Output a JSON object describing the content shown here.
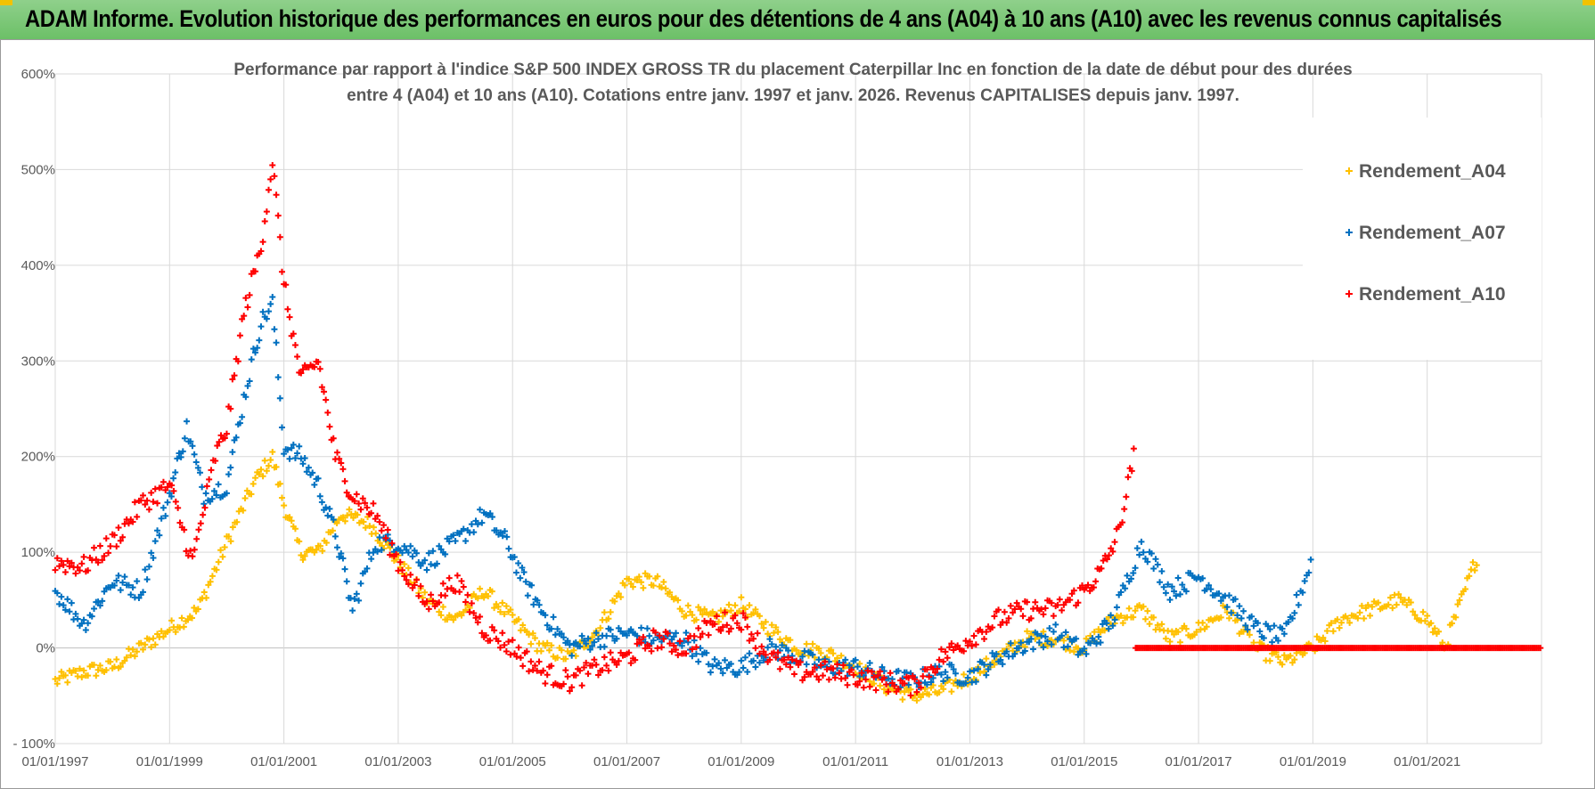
{
  "header": {
    "title": "ADAM Informe. Evolution historique des performances en euros pour des détentions de 4 ans (A04) à 10 ans (A10) avec les revenus connus capitalisés"
  },
  "colors": {
    "A04": "#ffc000",
    "A07": "#0070c0",
    "A10": "#ff0000",
    "grid": "#d9d9d9",
    "header_bg": "#7dc878"
  },
  "chart_data": {
    "type": "scatter",
    "title_line1": "Performance par rapport à l'indice S&P 500 INDEX GROSS TR  du placement Caterpillar Inc en fonction de la date de début pour des durées",
    "title_line2": "entre 4 (A04) et 10 ans (A10).  Cotations entre janv. 1997 et janv. 2026. Revenus CAPITALISES depuis janv. 1997.",
    "xlabel": "",
    "ylabel": "",
    "x_range": [
      1997.0,
      2023.0
    ],
    "ylim": [
      -100,
      600
    ],
    "y_ticks": [
      -100,
      0,
      100,
      200,
      300,
      400,
      500,
      600
    ],
    "y_tick_labels": [
      "- 100%",
      "0%",
      "100%",
      "200%",
      "300%",
      "400%",
      "500%",
      "600%"
    ],
    "x_ticks": [
      1997,
      1999,
      2001,
      2003,
      2005,
      2007,
      2009,
      2011,
      2013,
      2015,
      2017,
      2019,
      2021
    ],
    "x_tick_labels": [
      "01/01/1997",
      "01/01/1999",
      "01/01/2001",
      "01/01/2003",
      "01/01/2005",
      "01/01/2007",
      "01/01/2009",
      "01/01/2011",
      "01/01/2013",
      "01/01/2015",
      "01/01/2017",
      "01/01/2019",
      "01/01/2021"
    ],
    "legend_position": "top-right",
    "series": [
      {
        "name": "Rendement_A04",
        "x": [
          1997.0,
          1997.5,
          1998.0,
          1998.5,
          1999.0,
          1999.5,
          2000.0,
          2000.5,
          2000.8,
          2001.0,
          2001.3,
          2001.6,
          2002.0,
          2002.5,
          2003.0,
          2003.5,
          2004.0,
          2004.5,
          2005.0,
          2005.5,
          2006.0,
          2006.5,
          2007.0,
          2007.5,
          2008.0,
          2008.5,
          2009.0,
          2009.5,
          2010.0,
          2010.5,
          2011.0,
          2011.5,
          2012.0,
          2012.5,
          2013.0,
          2013.5,
          2014.0,
          2014.5,
          2015.0,
          2015.5,
          2016.0,
          2016.5,
          2017.0,
          2017.5,
          2018.0,
          2018.5,
          2019.0,
          2019.5,
          2020.0,
          2020.5,
          2021.0,
          2021.3,
          2021.6,
          2021.9
        ],
        "y": [
          -35,
          -25,
          -20,
          0,
          20,
          40,
          110,
          175,
          200,
          150,
          100,
          100,
          140,
          130,
          90,
          50,
          30,
          60,
          30,
          0,
          -10,
          20,
          70,
          70,
          40,
          30,
          45,
          20,
          0,
          -5,
          -20,
          -40,
          -50,
          -45,
          -30,
          -10,
          10,
          10,
          0,
          30,
          40,
          10,
          20,
          40,
          0,
          -15,
          0,
          30,
          40,
          50,
          30,
          0,
          50,
          100
        ]
      },
      {
        "name": "Rendement_A07",
        "x": [
          1997.0,
          1997.5,
          1998.0,
          1998.5,
          1999.0,
          1999.3,
          1999.6,
          2000.0,
          2000.3,
          2000.6,
          2000.8,
          2001.0,
          2001.3,
          2001.6,
          2001.9,
          2002.2,
          2002.6,
          2003.0,
          2003.5,
          2004.0,
          2004.5,
          2004.9,
          2005.2,
          2005.5,
          2006.0,
          2006.5,
          2007.0,
          2007.5,
          2008.0,
          2008.5,
          2009.0,
          2009.5,
          2010.0,
          2010.5,
          2011.0,
          2011.5,
          2012.0,
          2012.5,
          2013.0,
          2013.5,
          2014.0,
          2014.5,
          2015.0,
          2015.5,
          2016.0,
          2016.5,
          2017.0,
          2017.5,
          2018.0,
          2018.5,
          2019.0
        ],
        "y": [
          60,
          25,
          70,
          60,
          160,
          230,
          160,
          170,
          260,
          340,
          360,
          210,
          200,
          170,
          120,
          40,
          110,
          110,
          90,
          110,
          140,
          110,
          70,
          40,
          0,
          10,
          15,
          10,
          10,
          -20,
          -20,
          0,
          -10,
          -20,
          -20,
          -30,
          -35,
          -25,
          -30,
          -10,
          5,
          15,
          -5,
          30,
          110,
          60,
          75,
          50,
          20,
          10,
          95
        ]
      },
      {
        "name": "Rendement_A10",
        "x": [
          1997.0,
          1997.5,
          1998.0,
          1998.5,
          1999.0,
          1999.4,
          1999.8,
          2000.0,
          2000.3,
          2000.6,
          2000.8,
          2001.0,
          2001.3,
          2001.6,
          2001.9,
          2002.2,
          2002.6,
          2003.0,
          2003.5,
          2004.0,
          2004.5,
          2005.0,
          2005.5,
          2006.0,
          2006.5,
          2007.0,
          2007.5,
          2008.0,
          2008.5,
          2009.0,
          2009.5,
          2010.0,
          2010.5,
          2011.0,
          2011.5,
          2012.0,
          2012.5,
          2013.0,
          2013.5,
          2014.0,
          2014.5,
          2015.0,
          2015.3,
          2015.6,
          2015.9
        ],
        "y": [
          90,
          85,
          110,
          150,
          170,
          90,
          200,
          230,
          350,
          420,
          510,
          380,
          280,
          300,
          200,
          160,
          140,
          90,
          45,
          70,
          20,
          0,
          -25,
          -35,
          -20,
          -10,
          10,
          0,
          25,
          30,
          -10,
          -25,
          -25,
          -30,
          -35,
          -40,
          -10,
          10,
          30,
          40,
          40,
          60,
          80,
          120,
          210
        ]
      }
    ],
    "flat_segment": {
      "series": "Rendement_A10",
      "x_start": 2015.9,
      "x_end": 2023.0,
      "y": 0
    }
  }
}
